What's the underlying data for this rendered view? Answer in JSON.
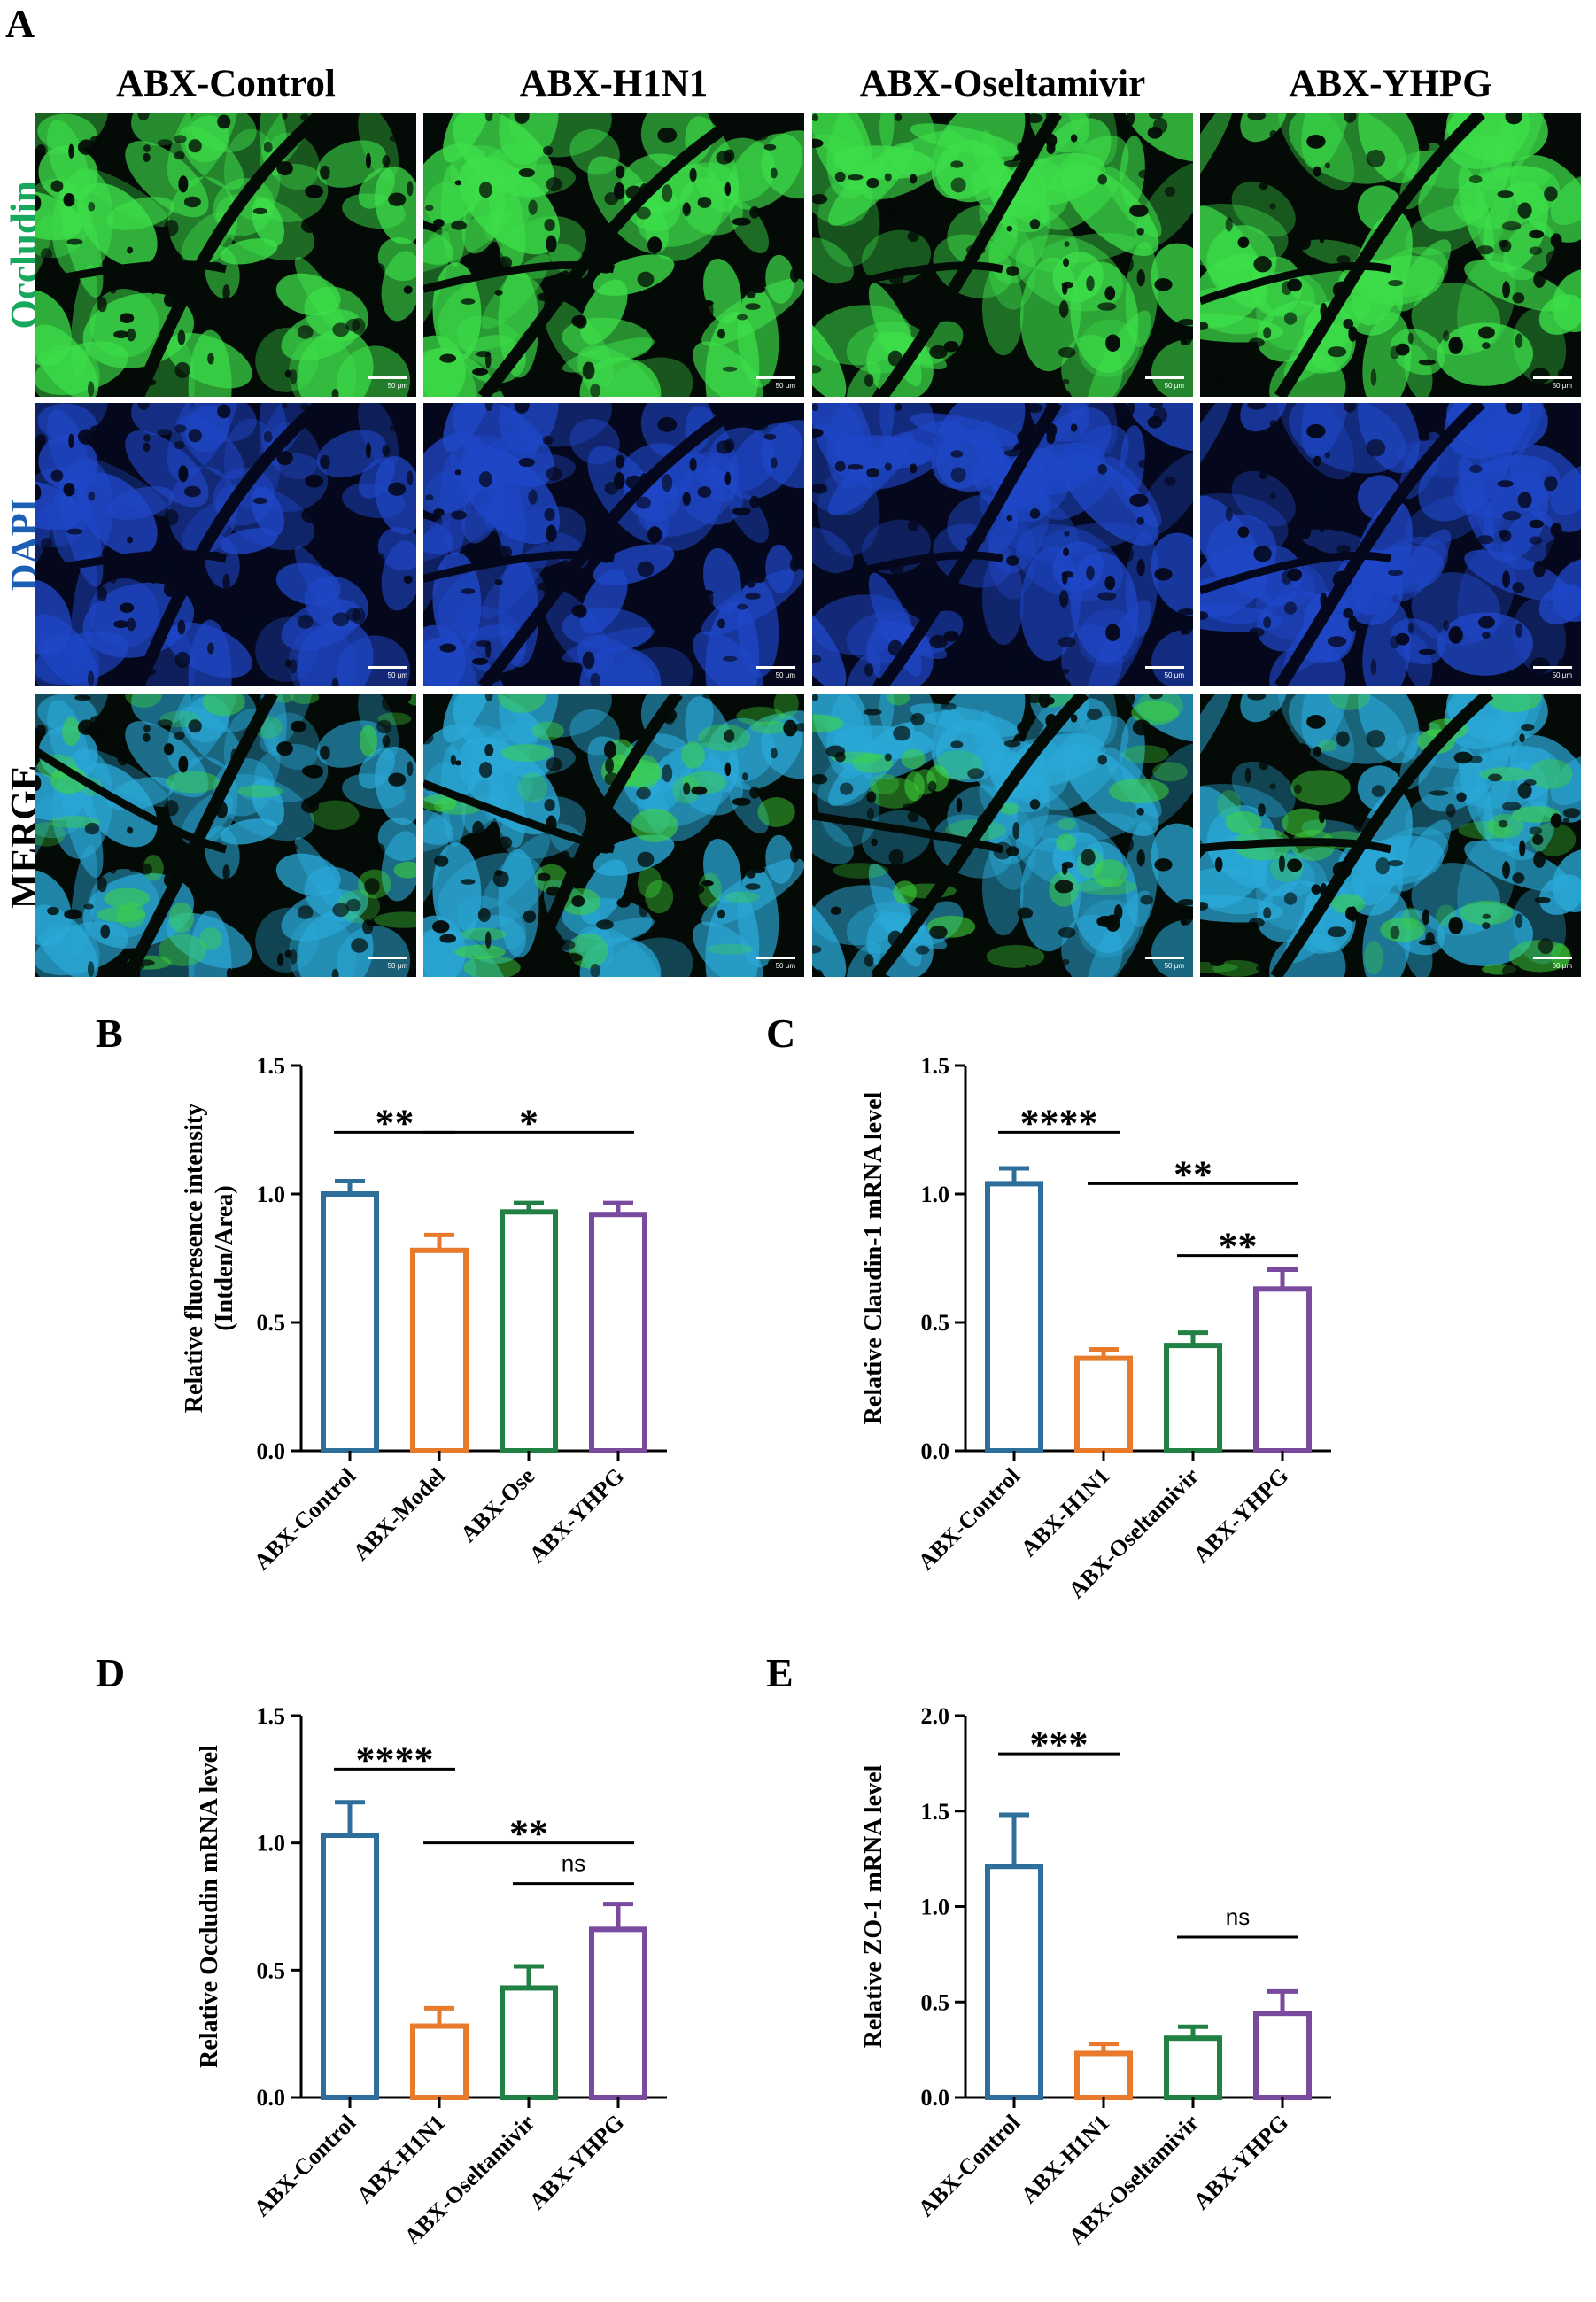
{
  "panel_a": {
    "letter": "A",
    "columns": [
      "ABX-Control",
      "ABX-H1N1",
      "ABX-Oseltamivir",
      "ABX-YHPG"
    ],
    "rows": [
      {
        "label": "Occludin",
        "color": "#16a85c"
      },
      {
        "label": "DAPI",
        "color": "#1d5fb5"
      },
      {
        "label": "MERGE",
        "color": "#000000"
      }
    ],
    "scale_text": "50 μm",
    "stain_colors": {
      "occludin": "#3ddf4a",
      "dapi": "#1f47c8",
      "merge_a": "#2aa9d8",
      "merge_b": "#3fd63a"
    }
  },
  "series_colors": [
    "#2d6e9a",
    "#e87a2b",
    "#218044",
    "#7a4a9e"
  ],
  "chart_data": [
    {
      "letter": "B",
      "type": "bar",
      "ylabel": [
        "Relative fluoresence intensity",
        "(Intden/Area)"
      ],
      "categories": [
        "ABX-Control",
        "ABX-Model",
        "ABX-Ose",
        "ABX-YHPG"
      ],
      "values": [
        1.0,
        0.78,
        0.93,
        0.92
      ],
      "errors": [
        0.05,
        0.06,
        0.035,
        0.045
      ],
      "ylim": [
        0,
        1.5
      ],
      "yticks": [
        "0.0",
        "0.5",
        "1.0",
        "1.5"
      ],
      "annotations": [
        {
          "from": 0,
          "to": 1,
          "level": 1.24,
          "text": "**"
        },
        {
          "from": 1,
          "to": 3,
          "level": 1.24,
          "text": "*"
        }
      ]
    },
    {
      "letter": "C",
      "type": "bar",
      "ylabel": [
        "Relative Claudin-1 mRNA level"
      ],
      "categories": [
        "ABX-Control",
        "ABX-H1N1",
        "ABX-Oseltamivir",
        "ABX-YHPG"
      ],
      "values": [
        1.04,
        0.36,
        0.41,
        0.63
      ],
      "errors": [
        0.06,
        0.035,
        0.05,
        0.075
      ],
      "ylim": [
        0,
        1.5
      ],
      "yticks": [
        "0.0",
        "0.5",
        "1.0",
        "1.5"
      ],
      "annotations": [
        {
          "from": 0,
          "to": 1,
          "level": 1.24,
          "text": "****"
        },
        {
          "from": 1,
          "to": 3,
          "level": 1.04,
          "text": "**"
        },
        {
          "from": 2,
          "to": 3,
          "level": 0.76,
          "text": "**"
        }
      ]
    },
    {
      "letter": "D",
      "type": "bar",
      "ylabel": [
        "Relative Occludin mRNA level"
      ],
      "categories": [
        "ABX-Control",
        "ABX-H1N1",
        "ABX-Oseltamivir",
        "ABX-YHPG"
      ],
      "values": [
        1.03,
        0.28,
        0.43,
        0.66
      ],
      "errors": [
        0.13,
        0.07,
        0.085,
        0.1
      ],
      "ylim": [
        0,
        1.5
      ],
      "yticks": [
        "0.0",
        "0.5",
        "1.0",
        "1.5"
      ],
      "annotations": [
        {
          "from": 0,
          "to": 1,
          "level": 1.29,
          "text": "****"
        },
        {
          "from": 1,
          "to": 3,
          "level": 1.0,
          "text": "**"
        },
        {
          "from": 2,
          "to": 3,
          "level": 0.84,
          "text": "ns"
        }
      ]
    },
    {
      "letter": "E",
      "type": "bar",
      "ylabel": [
        "Relative ZO-1 mRNA level"
      ],
      "categories": [
        "ABX-Control",
        "ABX-H1N1",
        "ABX-Oseltamivir",
        "ABX-YHPG"
      ],
      "values": [
        1.21,
        0.23,
        0.31,
        0.44
      ],
      "errors": [
        0.27,
        0.05,
        0.06,
        0.115
      ],
      "ylim": [
        0,
        2.0
      ],
      "yticks": [
        "0.0",
        "0.5",
        "1.0",
        "1.5",
        "2.0"
      ],
      "annotations": [
        {
          "from": 0,
          "to": 1,
          "level": 1.8,
          "text": "***"
        },
        {
          "from": 2,
          "to": 3,
          "level": 0.84,
          "text": "ns"
        }
      ]
    }
  ]
}
